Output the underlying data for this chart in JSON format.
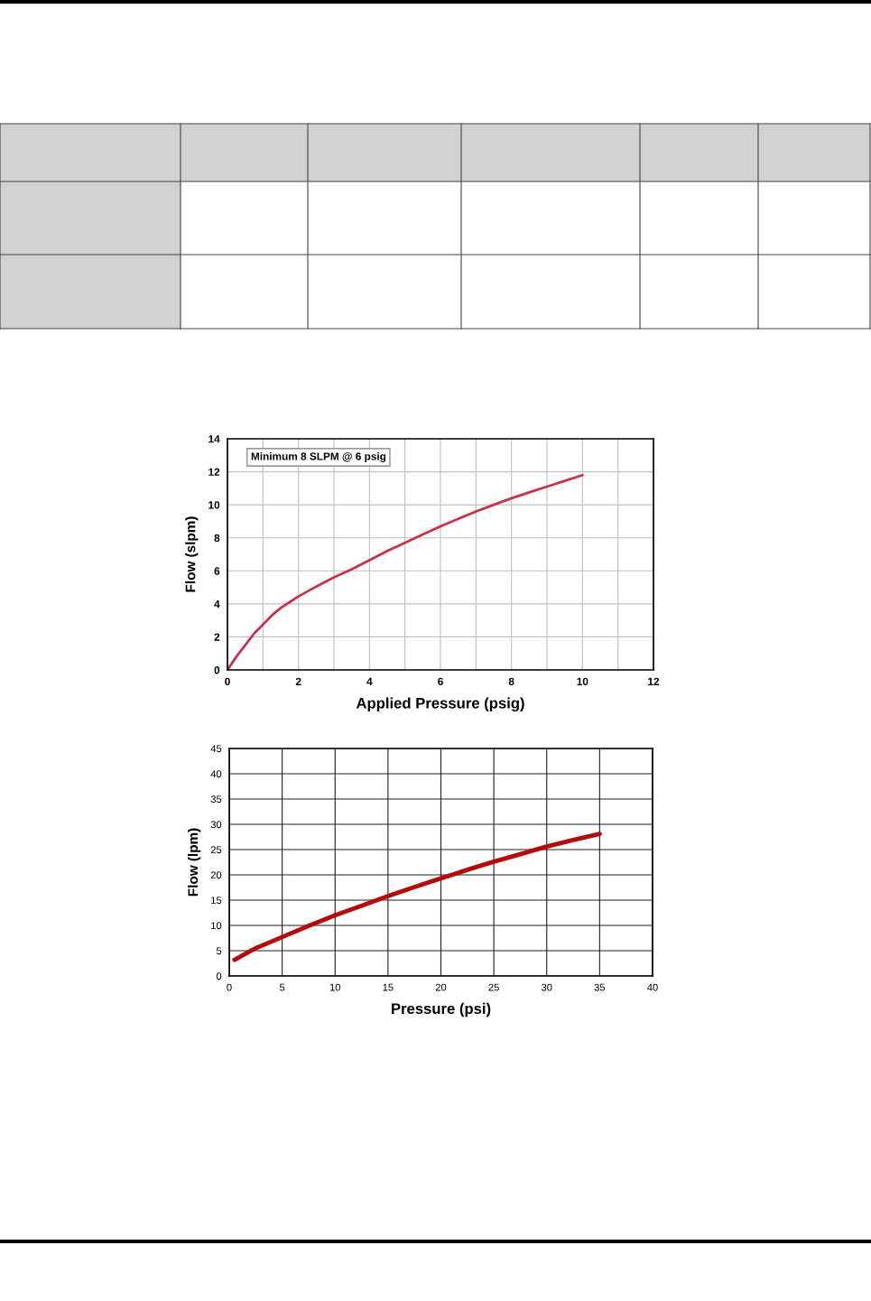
{
  "chart_data": [
    {
      "type": "line",
      "xlabel": "Applied Pressure (psig)",
      "ylabel": "Flow (slpm)",
      "annotations": [
        "Minimum 8 SLPM @ 6 psig"
      ],
      "x": [
        0,
        0.25,
        0.5,
        0.75,
        1,
        1.25,
        1.5,
        1.75,
        2,
        2.5,
        3,
        3.5,
        4,
        4.5,
        5,
        5.5,
        6,
        6.5,
        7,
        7.5,
        8,
        8.5,
        9,
        9.5,
        10
      ],
      "series": [
        {
          "color": "#c8324a",
          "values": [
            0,
            0.8,
            1.5,
            2.2,
            2.75,
            3.3,
            3.75,
            4.1,
            4.45,
            5.05,
            5.6,
            6.1,
            6.65,
            7.2,
            7.7,
            8.2,
            8.7,
            9.15,
            9.6,
            10.0,
            10.4,
            10.75,
            11.1,
            11.45,
            11.8
          ]
        }
      ],
      "xlim": [
        0,
        12
      ],
      "ylim": [
        0,
        14
      ],
      "xticks": [
        0,
        {
          "value": 1,
          "label": null
        },
        2,
        {
          "value": 3,
          "label": null
        },
        4,
        {
          "value": 5,
          "label": null
        },
        6,
        {
          "value": 7,
          "label": null
        },
        8,
        {
          "value": 9,
          "label": null
        },
        10,
        {
          "value": 11,
          "label": null
        },
        12
      ],
      "yticks": [
        0,
        2,
        4,
        6,
        8,
        10,
        12,
        14
      ],
      "grid": true,
      "line_style": "solid"
    },
    {
      "type": "line",
      "xlabel": "Pressure (psi)",
      "ylabel": "Flow (lpm)",
      "x": [
        0.5,
        2.5,
        5,
        7.5,
        10,
        12.5,
        15,
        17.5,
        20,
        22.5,
        25,
        27.5,
        30,
        32.5,
        35
      ],
      "series": [
        {
          "color": "#b40a0a",
          "values": [
            3.2,
            5.5,
            7.7,
            9.9,
            12,
            13.9,
            15.8,
            17.6,
            19.3,
            21,
            22.6,
            24.1,
            25.6,
            26.9,
            28.1
          ]
        }
      ],
      "xlim": [
        0,
        40
      ],
      "ylim": [
        0,
        45
      ],
      "xticks": [
        0,
        5,
        10,
        15,
        20,
        25,
        30,
        35,
        40
      ],
      "yticks": [
        0,
        5,
        10,
        15,
        20,
        25,
        30,
        35,
        40,
        45
      ],
      "grid": true,
      "line_style": "solid"
    }
  ]
}
